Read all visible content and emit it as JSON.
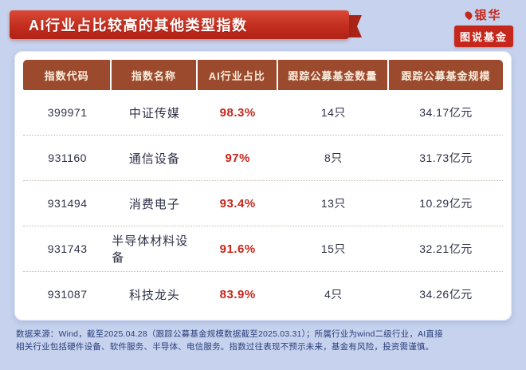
{
  "page": {
    "bg_color": "#c7d3ee",
    "accent_red": "#c5271c",
    "header_brown": "#9c4a2e"
  },
  "header": {
    "title": "AI行业占比较高的其他类型指数"
  },
  "logo": {
    "brand": "银华",
    "sub": "图说基金",
    "flame_icon": "flame-icon"
  },
  "table": {
    "columns": [
      "指数代码",
      "指数名称",
      "AI行业占比",
      "跟踪公募基金数量",
      "跟踪公募基金规模"
    ],
    "rows": [
      {
        "code": "399971",
        "name": "中证传媒",
        "ratio": "98.3%",
        "funds": "14只",
        "scale": "34.17亿元"
      },
      {
        "code": "931160",
        "name": "通信设备",
        "ratio": "97%",
        "funds": "8只",
        "scale": "31.73亿元"
      },
      {
        "code": "931494",
        "name": "消费电子",
        "ratio": "93.4%",
        "funds": "13只",
        "scale": "10.29亿元"
      },
      {
        "code": "931743",
        "name": "半导体材料设备",
        "ratio": "91.6%",
        "funds": "15只",
        "scale": "32.21亿元"
      },
      {
        "code": "931087",
        "name": "科技龙头",
        "ratio": "83.9%",
        "funds": "4只",
        "scale": "34.26亿元"
      }
    ]
  },
  "footer": {
    "line1": "数据来源：Wind，截至2025.04.28（跟踪公募基金规模数据截至2025.03.31）；所属行业为wind二级行业，AI直接",
    "line2": "相关行业包括硬件设备、软件服务、半导体、电信服务。指数过往表现不预示未来，基金有风险，投资需谨慎。"
  },
  "chart_data": {
    "type": "table",
    "title": "AI行业占比较高的其他类型指数",
    "columns": [
      "指数代码",
      "指数名称",
      "AI行业占比",
      "跟踪公募基金数量",
      "跟踪公募基金规模"
    ],
    "rows": [
      [
        "399971",
        "中证传媒",
        "98.3%",
        "14只",
        "34.17亿元"
      ],
      [
        "931160",
        "通信设备",
        "97%",
        "8只",
        "31.73亿元"
      ],
      [
        "931494",
        "消费电子",
        "93.4%",
        "13只",
        "10.29亿元"
      ],
      [
        "931743",
        "半导体材料设备",
        "91.6%",
        "15只",
        "32.21亿元"
      ],
      [
        "931087",
        "科技龙头",
        "83.9%",
        "4只",
        "34.26亿元"
      ]
    ]
  }
}
